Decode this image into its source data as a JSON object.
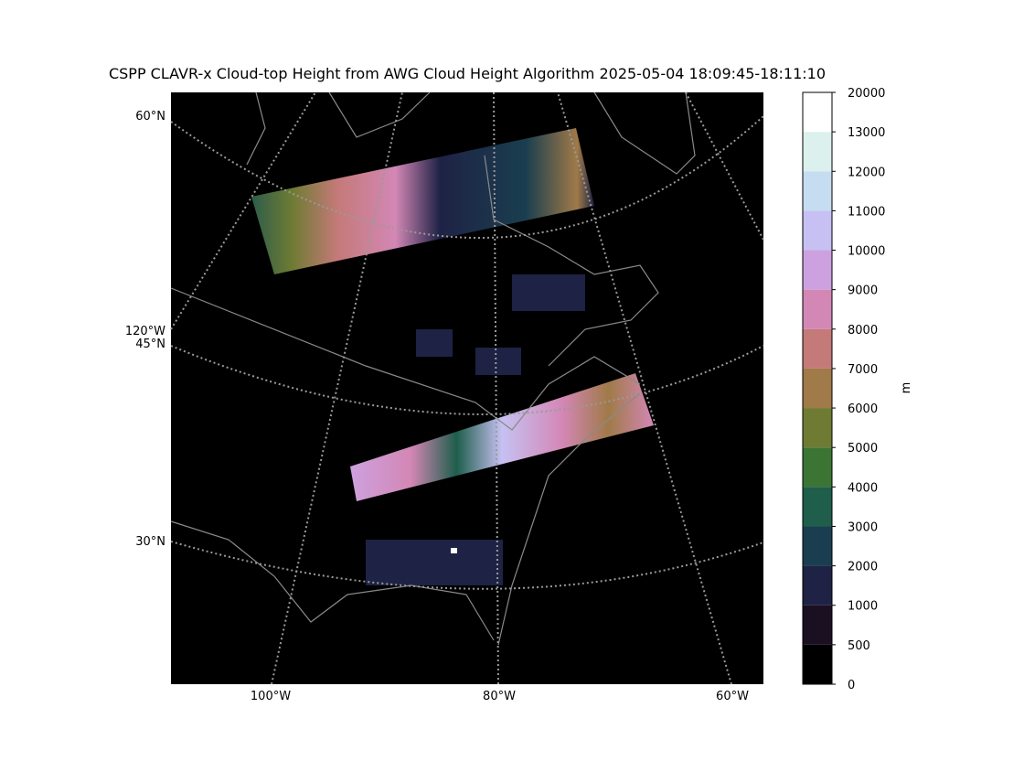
{
  "title": "CSPP CLAVR-x Cloud-top Height from AWG Cloud Height Algorithm 2025-05-04 18:09:45-18:11:10",
  "map": {
    "lat_labels": [
      "60°N",
      "45°N",
      "30°N"
    ],
    "lon_label_left": "120°W",
    "lon_labels_bottom": [
      "100°W",
      "80°W",
      "60°W"
    ]
  },
  "colorbar": {
    "label": "m",
    "ticks": [
      0,
      500,
      1000,
      2000,
      3000,
      4000,
      5000,
      6000,
      7000,
      8000,
      9000,
      10000,
      11000,
      12000,
      13000,
      20000
    ],
    "colors": [
      "#000000",
      "#1b0f22",
      "#1e2245",
      "#1a3e4f",
      "#1e5e4b",
      "#3c7434",
      "#6f7b33",
      "#a07a48",
      "#c47a78",
      "#d387b5",
      "#cda1df",
      "#c6c1f2",
      "#c6dcf1",
      "#dcf1ed",
      "#ffffff"
    ]
  }
}
